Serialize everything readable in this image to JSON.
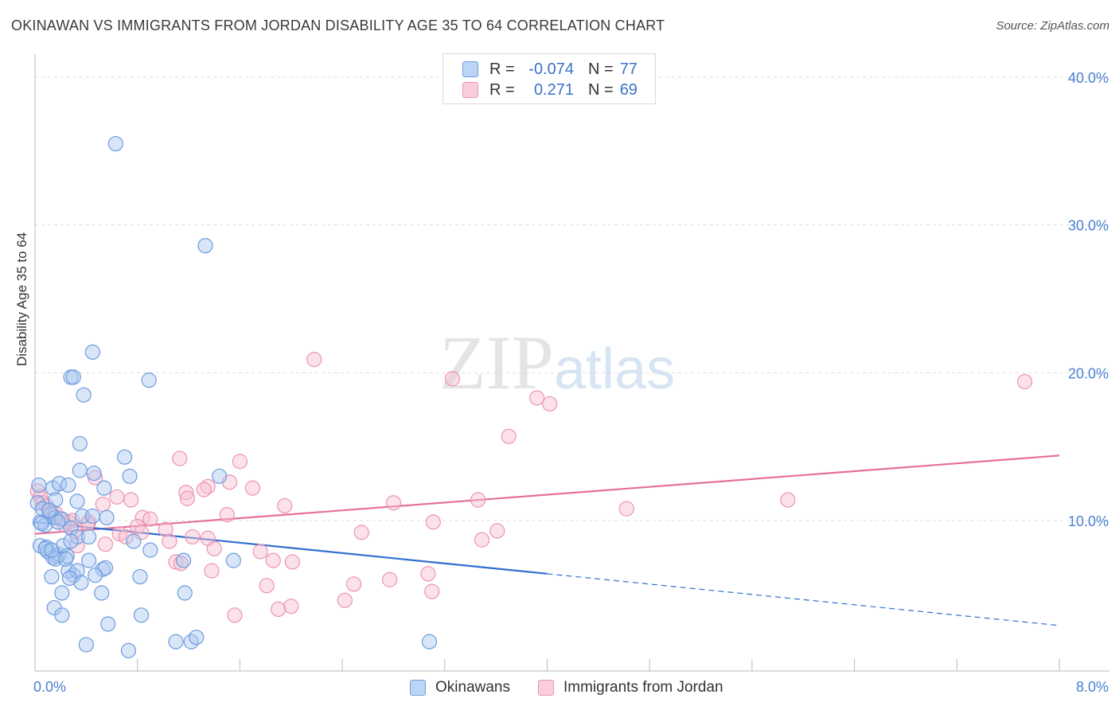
{
  "title": "OKINAWAN VS IMMIGRANTS FROM JORDAN DISABILITY AGE 35 TO 64 CORRELATION CHART",
  "source": "Source: ZipAtlas.com",
  "watermark": {
    "zip": "ZIP",
    "atlas": "atlas"
  },
  "legend": {
    "rows": [
      {
        "r_label": "R =",
        "r_value": "-0.074",
        "n_label": "N =",
        "n_value": "77"
      },
      {
        "r_label": "R =",
        "r_value": "0.271",
        "n_label": "N =",
        "n_value": "69"
      }
    ]
  },
  "bottom_legend": {
    "series1": "Okinawans",
    "series2": "Immigrants from Jordan"
  },
  "colors": {
    "blue_fill": "#aac8ef",
    "blue_stroke": "#6c9be0",
    "blue_line": "#2f6fd0",
    "pink_fill": "#f6bfd0",
    "pink_stroke": "#ec93b2",
    "pink_line": "#e5709a",
    "axis_text": "#4a7fcf",
    "grid": "#dddddd"
  },
  "chart_data": {
    "type": "scatter",
    "title": "OKINAWAN VS IMMIGRANTS FROM JORDAN DISABILITY AGE 35 TO 64 CORRELATION CHART",
    "xlabel": "",
    "ylabel": "Disability Age 35 to 64",
    "xlim": [
      0,
      8
    ],
    "ylim": [
      0,
      40
    ],
    "x_ticks": [
      "0.0%",
      "8.0%"
    ],
    "y_ticks": [
      {
        "value": 10,
        "label": "10.0%"
      },
      {
        "value": 20,
        "label": "20.0%"
      },
      {
        "value": 30,
        "label": "30.0%"
      },
      {
        "value": 40,
        "label": "40.0%"
      }
    ],
    "grid": true,
    "series": [
      {
        "name": "Okinawans",
        "r": -0.074,
        "n": 77,
        "trend": {
          "x0": 0.0,
          "y0": 9.9,
          "x1": 4.0,
          "y1": 6.4,
          "dash_x1": 8.0,
          "dash_y1": 2.9
        },
        "points": [
          [
            0.63,
            35.5
          ],
          [
            1.33,
            28.6
          ],
          [
            0.45,
            21.4
          ],
          [
            0.28,
            19.7
          ],
          [
            0.3,
            19.7
          ],
          [
            0.89,
            19.5
          ],
          [
            0.38,
            18.5
          ],
          [
            0.35,
            15.2
          ],
          [
            0.7,
            14.3
          ],
          [
            0.35,
            13.4
          ],
          [
            0.46,
            13.2
          ],
          [
            0.74,
            13.0
          ],
          [
            1.44,
            13.0
          ],
          [
            0.03,
            12.4
          ],
          [
            0.14,
            12.2
          ],
          [
            0.19,
            12.5
          ],
          [
            0.26,
            12.4
          ],
          [
            0.54,
            12.2
          ],
          [
            0.16,
            11.4
          ],
          [
            0.33,
            11.3
          ],
          [
            0.02,
            11.2
          ],
          [
            0.06,
            10.8
          ],
          [
            0.12,
            10.4
          ],
          [
            0.16,
            10.2
          ],
          [
            0.21,
            10.1
          ],
          [
            0.37,
            10.3
          ],
          [
            0.45,
            10.3
          ],
          [
            0.56,
            10.2
          ],
          [
            0.04,
            9.9
          ],
          [
            0.08,
            9.7
          ],
          [
            0.28,
            9.5
          ],
          [
            0.04,
            8.3
          ],
          [
            0.09,
            8.2
          ],
          [
            0.1,
            7.9
          ],
          [
            0.14,
            7.5
          ],
          [
            0.17,
            7.6
          ],
          [
            0.19,
            7.7
          ],
          [
            0.22,
            8.3
          ],
          [
            0.25,
            7.6
          ],
          [
            0.33,
            8.9
          ],
          [
            0.42,
            8.9
          ],
          [
            0.28,
            8.6
          ],
          [
            0.08,
            8.1
          ],
          [
            0.42,
            7.3
          ],
          [
            0.53,
            6.7
          ],
          [
            0.55,
            6.8
          ],
          [
            0.3,
            6.3
          ],
          [
            0.26,
            6.6
          ],
          [
            0.33,
            6.6
          ],
          [
            0.13,
            6.2
          ],
          [
            0.47,
            6.3
          ],
          [
            0.77,
            8.6
          ],
          [
            0.9,
            8.0
          ],
          [
            1.16,
            7.3
          ],
          [
            0.82,
            6.2
          ],
          [
            1.55,
            7.3
          ],
          [
            0.36,
            5.8
          ],
          [
            0.27,
            6.1
          ],
          [
            0.21,
            5.1
          ],
          [
            0.52,
            5.1
          ],
          [
            1.17,
            5.1
          ],
          [
            0.15,
            4.1
          ],
          [
            0.21,
            3.6
          ],
          [
            0.83,
            3.6
          ],
          [
            0.57,
            3.0
          ],
          [
            1.1,
            1.8
          ],
          [
            1.22,
            1.8
          ],
          [
            1.26,
            2.1
          ],
          [
            0.73,
            1.2
          ],
          [
            0.4,
            1.6
          ],
          [
            3.08,
            1.8
          ],
          [
            0.16,
            7.4
          ],
          [
            0.13,
            8.0
          ],
          [
            0.05,
            9.8
          ],
          [
            0.11,
            10.7
          ],
          [
            0.18,
            9.9
          ],
          [
            0.24,
            7.4
          ]
        ]
      },
      {
        "name": "Immigrants from Jordan",
        "r": 0.271,
        "n": 69,
        "trend": {
          "x0": 0.0,
          "y0": 9.1,
          "x1": 8.0,
          "y1": 14.4
        },
        "points": [
          [
            7.73,
            19.4
          ],
          [
            2.18,
            20.9
          ],
          [
            3.26,
            19.6
          ],
          [
            3.92,
            18.3
          ],
          [
            4.02,
            17.9
          ],
          [
            3.7,
            15.7
          ],
          [
            1.13,
            14.2
          ],
          [
            1.6,
            14.0
          ],
          [
            0.47,
            12.9
          ],
          [
            1.35,
            12.3
          ],
          [
            1.32,
            12.1
          ],
          [
            1.52,
            12.6
          ],
          [
            1.7,
            12.2
          ],
          [
            1.18,
            11.9
          ],
          [
            1.19,
            11.5
          ],
          [
            0.64,
            11.6
          ],
          [
            0.75,
            11.4
          ],
          [
            0.53,
            11.1
          ],
          [
            2.8,
            11.2
          ],
          [
            3.46,
            11.4
          ],
          [
            5.88,
            11.4
          ],
          [
            1.95,
            11.0
          ],
          [
            4.62,
            10.8
          ],
          [
            0.02,
            12.0
          ],
          [
            0.04,
            11.6
          ],
          [
            0.06,
            11.2
          ],
          [
            0.09,
            11.0
          ],
          [
            0.13,
            10.6
          ],
          [
            0.16,
            10.5
          ],
          [
            0.2,
            10.1
          ],
          [
            0.26,
            9.9
          ],
          [
            0.29,
            10.0
          ],
          [
            0.42,
            9.9
          ],
          [
            0.23,
            9.7
          ],
          [
            0.31,
            9.3
          ],
          [
            0.41,
            9.8
          ],
          [
            0.84,
            10.2
          ],
          [
            0.9,
            10.1
          ],
          [
            1.02,
            9.4
          ],
          [
            0.8,
            9.6
          ],
          [
            0.83,
            9.2
          ],
          [
            0.66,
            9.1
          ],
          [
            0.71,
            8.9
          ],
          [
            1.23,
            8.9
          ],
          [
            1.35,
            8.8
          ],
          [
            1.5,
            10.4
          ],
          [
            3.11,
            9.9
          ],
          [
            2.55,
            9.2
          ],
          [
            3.61,
            9.3
          ],
          [
            3.49,
            8.7
          ],
          [
            0.33,
            8.3
          ],
          [
            0.55,
            8.4
          ],
          [
            1.05,
            8.6
          ],
          [
            1.4,
            8.1
          ],
          [
            1.76,
            7.9
          ],
          [
            1.86,
            7.3
          ],
          [
            2.01,
            7.2
          ],
          [
            1.1,
            7.2
          ],
          [
            1.14,
            7.1
          ],
          [
            1.38,
            6.6
          ],
          [
            3.07,
            6.4
          ],
          [
            2.77,
            6.0
          ],
          [
            2.49,
            5.7
          ],
          [
            1.81,
            5.6
          ],
          [
            3.1,
            5.2
          ],
          [
            2.42,
            4.6
          ],
          [
            2.0,
            4.2
          ],
          [
            1.9,
            4.0
          ],
          [
            1.56,
            3.6
          ]
        ]
      }
    ]
  }
}
